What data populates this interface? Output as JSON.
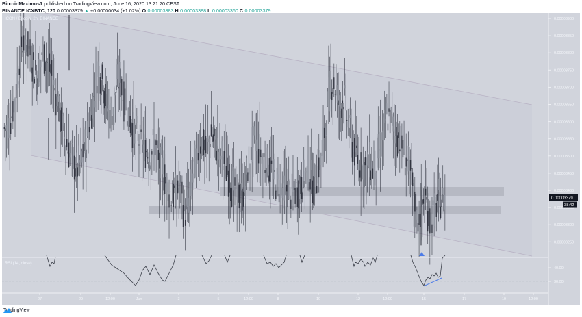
{
  "header": {
    "author": "BitcoinMaximus1",
    "published": "published on TradingView.com, June 16, 2020 13:21:20 CEST",
    "symbol": "BINANCE:ICXBTC, 120",
    "last": "0.00003379",
    "change": "+0.00000034 (+1.02%)",
    "o_label": "O:",
    "o": "0.00003383",
    "h_label": "H:",
    "h": "0.00003388",
    "l_label": "L:",
    "l": "0.00003360",
    "c_label": "C:",
    "c": "0.00003379"
  },
  "pane": {
    "title": "ICON / Bitcoin, 2h, BINANCE",
    "rsi_title": "RSI (14, close)",
    "price_badge": "0.00003379",
    "countdown_badge": "38:42"
  },
  "footer": {
    "brand": "TradingView"
  },
  "colors": {
    "background": "#d1d4dc",
    "candle": "#2a2e39",
    "rsi_line": "#3a3e48",
    "divergence": "#4c7be8",
    "marker": "#4c7be8",
    "box": "#b6b9c3",
    "channel_fill": "#c9cbd7",
    "channel_line": "#b8b2c4"
  },
  "chart_data": [
    {
      "type": "candlestick",
      "title": "ICON / Bitcoin, 2h, BINANCE",
      "xlabel": "",
      "ylabel": "Price (BTC)",
      "x_ticks": [
        "27",
        "29",
        "12:00",
        "Jun",
        "3",
        "5",
        "12:00",
        "8",
        "10",
        "12",
        "12:00",
        "15",
        "17",
        "19",
        "12:00"
      ],
      "y_ticks": [
        "0.00003900",
        "0.00003850",
        "0.00003800",
        "0.00003750",
        "0.00003700",
        "0.00003650",
        "0.00003600",
        "0.00003550",
        "0.00003500",
        "0.00003450",
        "0.00003400",
        "0.00003350",
        "0.00003300",
        "0.00003250"
      ],
      "ylim": [
        3.22e-05,
        3.9e-05
      ],
      "last_price": 3.379e-05,
      "series_close_approx": [
        [
          3.58e-05,
          3.62e-05,
          3.7e-05,
          3.82e-05,
          3.84e-05,
          3.81e-05,
          3.76e-05,
          3.73e-05,
          3.8e-05,
          3.78e-05,
          3.74e-05,
          3.69e-05,
          3.62e-05,
          3.57e-05,
          3.52e-05,
          3.49e-05,
          3.46e-05,
          3.49e-05,
          3.53e-05,
          3.6e-05,
          3.68e-05,
          3.76e-05,
          3.72e-05,
          3.65e-05,
          3.62e-05,
          3.69e-05,
          3.73e-05,
          3.66e-05,
          3.62e-05,
          3.58e-05,
          3.56e-05,
          3.53e-05,
          3.52e-05,
          3.5e-05,
          3.55e-05,
          3.48e-05,
          3.46e-05,
          3.41e-05,
          3.38e-05,
          3.39e-05,
          3.41e-05,
          3.33e-05,
          3.37e-05,
          3.45e-05,
          3.5e-05,
          3.55e-05,
          3.51e-05,
          3.56e-05,
          3.54e-05,
          3.52e-05,
          3.49e-05,
          3.45e-05,
          3.41e-05,
          3.41e-05,
          3.38e-05,
          3.4e-05,
          3.49e-05,
          3.54e-05,
          3.53e-05,
          3.5e-05,
          3.47e-05,
          3.46e-05,
          3.43e-05,
          3.41e-05,
          3.41e-05,
          3.4e-05,
          3.39e-05,
          3.4e-05,
          3.41e-05,
          3.44e-05,
          3.45e-05,
          3.41e-05,
          3.46e-05,
          3.52e-05,
          3.62e-05,
          3.72e-05,
          3.7e-05,
          3.64e-05,
          3.68e-05,
          3.59e-05,
          3.53e-05,
          3.5e-05,
          3.47e-05,
          3.46e-05,
          3.48e-05,
          3.45e-05,
          3.51e-05,
          3.55e-05,
          3.62e-05,
          3.6e-05,
          3.56e-05,
          3.55e-05,
          3.5e-05,
          3.47e-05,
          3.4e-05,
          3.31e-05,
          3.35e-05,
          3.37e-05,
          3.31e-05,
          3.34e-05,
          3.38e-05,
          3.37e-05,
          3.39e-05
        ]
      ],
      "annotations": {
        "channel": {
          "upper": [
            [
              3.91e-05,
              "start"
            ],
            [
              3.64e-05,
              "end"
            ]
          ],
          "lower": [
            [
              3.49e-05,
              "start"
            ],
            [
              3.2e-05,
              "end"
            ]
          ]
        },
        "support_boxes": [
          {
            "top": 3.41e-05,
            "bottom": 3.38e-05
          },
          {
            "top": 3.36e-05,
            "bottom": 3.34e-05
          }
        ],
        "marker": "blue triangle below low at 15 Jun"
      }
    },
    {
      "type": "line",
      "title": "RSI (14, close)",
      "y_ticks": [
        "40.00",
        "30.00"
      ],
      "ylim": [
        20,
        50
      ],
      "dashed_level": 30,
      "annotations": {
        "bullish_divergence_line": "rising blue line from ~27 to ~33 near 15-16 Jun"
      }
    }
  ]
}
